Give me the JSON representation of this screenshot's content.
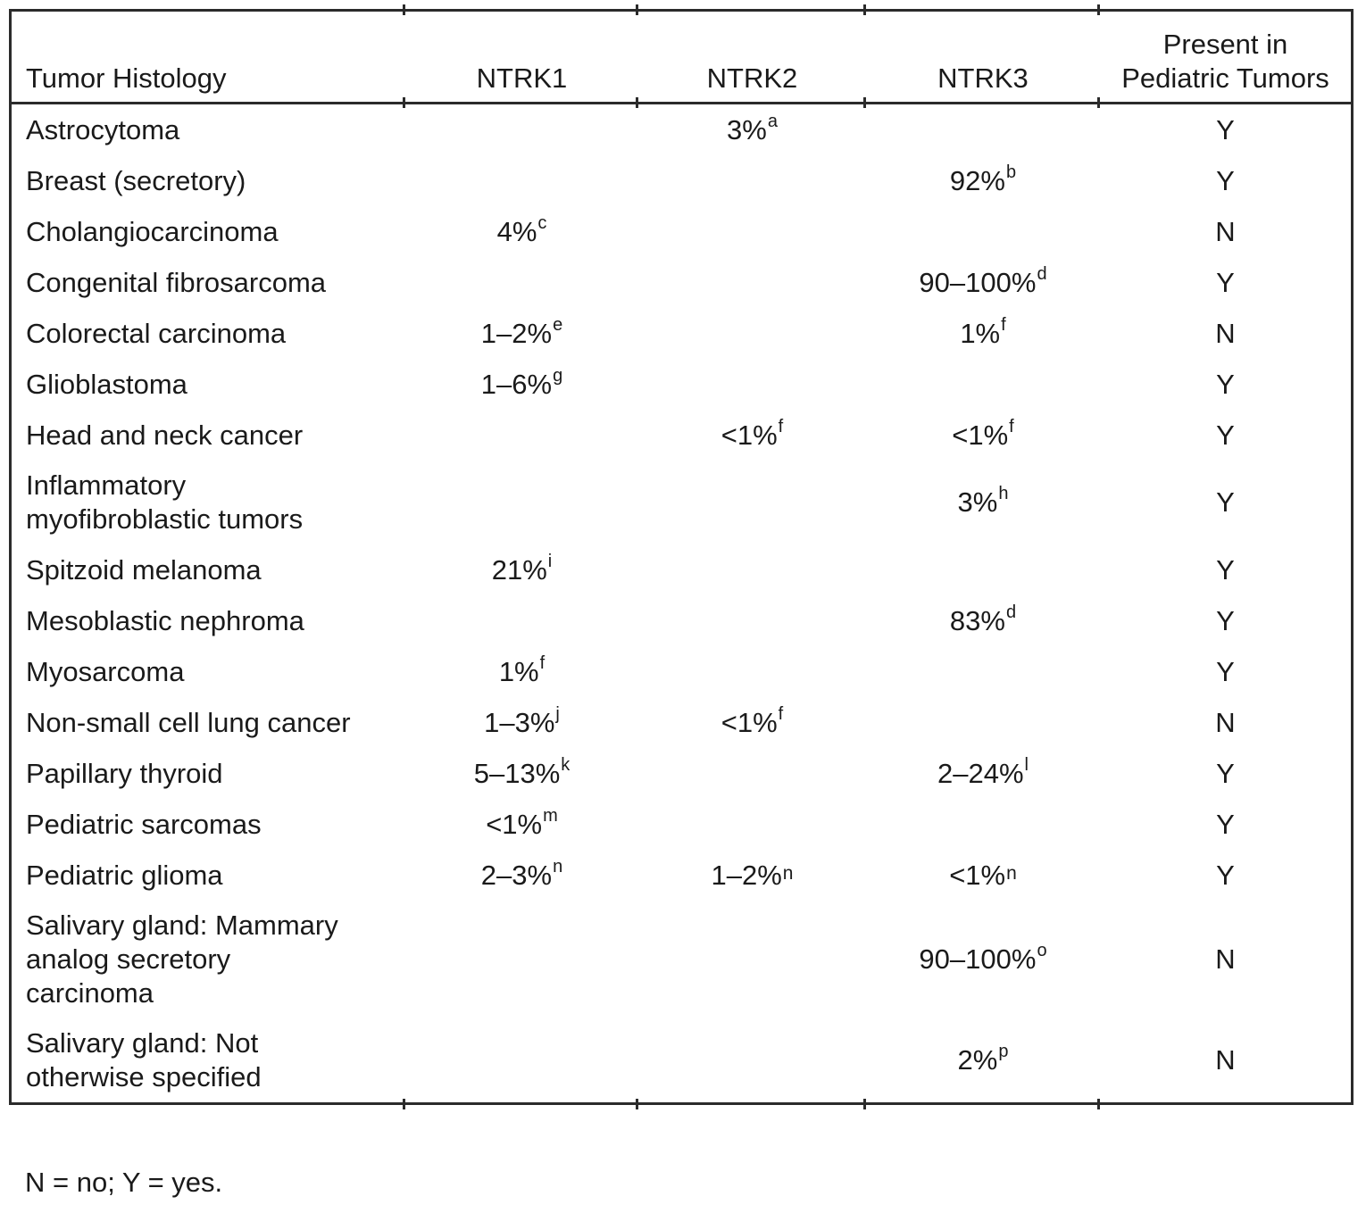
{
  "table": {
    "headers": {
      "histology": "Tumor Histology",
      "ntrk1": "NTRK1",
      "ntrk2": "NTRK2",
      "ntrk3": "NTRK3",
      "pediatric": "Present in\nPediatric Tumors"
    },
    "rows": [
      {
        "histology": "Astrocytoma",
        "ntrk1": null,
        "ntrk2": {
          "text": "3%",
          "sup": "a"
        },
        "ntrk3": null,
        "pediatric": "Y"
      },
      {
        "histology": "Breast (secretory)",
        "ntrk1": null,
        "ntrk2": null,
        "ntrk3": {
          "text": "92%",
          "sup": "b"
        },
        "pediatric": "Y"
      },
      {
        "histology": "Cholangiocarcinoma",
        "ntrk1": {
          "text": "4%",
          "sup": "c"
        },
        "ntrk2": null,
        "ntrk3": null,
        "pediatric": "N"
      },
      {
        "histology": "Congenital fibrosarcoma",
        "ntrk1": null,
        "ntrk2": null,
        "ntrk3": {
          "text": "90–100%",
          "sup": "d"
        },
        "pediatric": "Y"
      },
      {
        "histology": "Colorectal carcinoma",
        "ntrk1": {
          "text": "1–2%",
          "sup": "e"
        },
        "ntrk2": null,
        "ntrk3": {
          "text": "1%",
          "sup": "f"
        },
        "pediatric": "N"
      },
      {
        "histology": "Glioblastoma",
        "ntrk1": {
          "text": "1–6%",
          "sup": "g"
        },
        "ntrk2": null,
        "ntrk3": null,
        "pediatric": "Y"
      },
      {
        "histology": "Head and neck cancer",
        "ntrk1": null,
        "ntrk2": {
          "text": "<1%",
          "sup": "f"
        },
        "ntrk3": {
          "text": "<1%",
          "sup": "f"
        },
        "pediatric": "Y"
      },
      {
        "histology": "Inflammatory\nmyofibroblastic tumors",
        "ntrk1": null,
        "ntrk2": null,
        "ntrk3": {
          "text": "3%",
          "sup": "h"
        },
        "pediatric": "Y"
      },
      {
        "histology": "Spitzoid melanoma",
        "ntrk1": {
          "text": "21%",
          "sup": "i"
        },
        "ntrk2": null,
        "ntrk3": null,
        "pediatric": "Y"
      },
      {
        "histology": "Mesoblastic nephroma",
        "ntrk1": null,
        "ntrk2": null,
        "ntrk3": {
          "text": "83%",
          "sup": "d"
        },
        "pediatric": "Y"
      },
      {
        "histology": "Myosarcoma",
        "ntrk1": {
          "text": "1%",
          "sup": "f"
        },
        "ntrk2": null,
        "ntrk3": null,
        "pediatric": "Y"
      },
      {
        "histology": "Non-small cell lung cancer",
        "ntrk1": {
          "text": "1–3%",
          "sup": "j"
        },
        "ntrk2": {
          "text": "<1%",
          "sup": "f"
        },
        "ntrk3": null,
        "pediatric": "N"
      },
      {
        "histology": "Papillary thyroid",
        "ntrk1": {
          "text": "5–13%",
          "sup": "k"
        },
        "ntrk2": null,
        "ntrk3": {
          "text": "2–24%",
          "sup": "l"
        },
        "pediatric": "Y"
      },
      {
        "histology": "Pediatric sarcomas",
        "ntrk1": {
          "text": "<1%",
          "sup": "m"
        },
        "ntrk2": null,
        "ntrk3": null,
        "pediatric": "Y"
      },
      {
        "histology": "Pediatric glioma",
        "ntrk1": {
          "text": "2–3%",
          "sup": "n"
        },
        "ntrk2": {
          "text": "1–2%",
          "sup": "n",
          "sup_low": true
        },
        "ntrk3": {
          "text": "<1%",
          "sup": "n",
          "sup_low": true
        },
        "pediatric": "Y"
      },
      {
        "histology": "Salivary gland: Mammary\nanalog secretory\ncarcinoma",
        "ntrk1": null,
        "ntrk2": null,
        "ntrk3": {
          "text": "90–100%",
          "sup": "o"
        },
        "pediatric": "N"
      },
      {
        "histology": "Salivary gland: Not\notherwise specified",
        "ntrk1": null,
        "ntrk2": null,
        "ntrk3": {
          "text": "2%",
          "sup": "p"
        },
        "pediatric": "N"
      }
    ]
  },
  "footnote": "N = no; Y = yes.",
  "colors": {
    "text": "#1a1a1a",
    "border": "#2b2b2b",
    "background": "#ffffff"
  }
}
